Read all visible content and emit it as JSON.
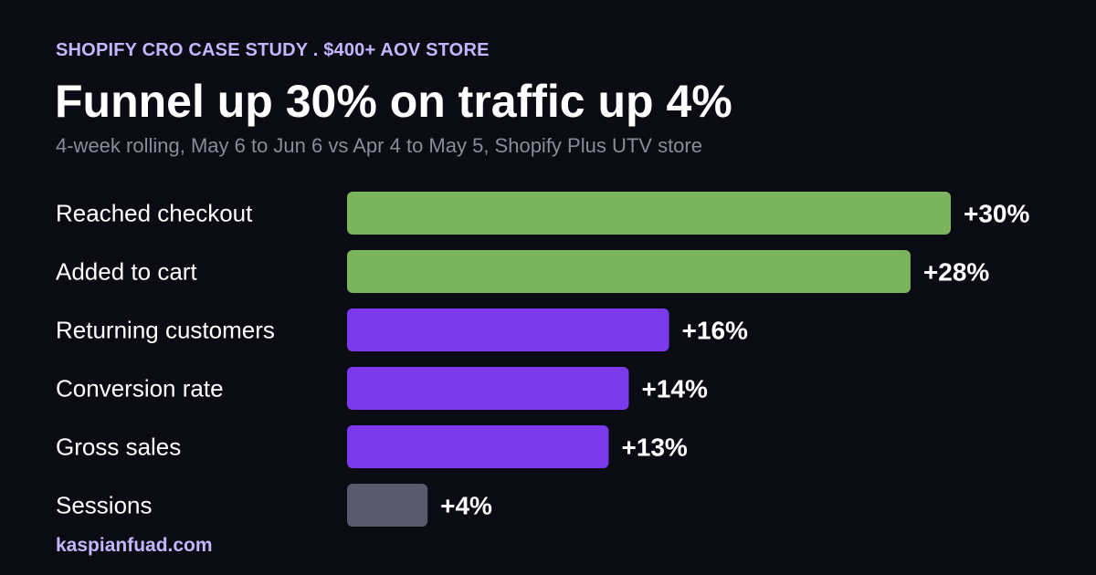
{
  "header": {
    "eyebrow": "SHOPIFY CRO CASE STUDY  .  $400+ AOV STORE",
    "title": "Funnel up 30% on traffic up 4%",
    "subtitle": "4-week rolling, May 6 to Jun 6 vs Apr 4 to May 5, Shopify Plus UTV store"
  },
  "footer": {
    "site": "kaspianfuad.com"
  },
  "chart_data": {
    "type": "bar",
    "orientation": "horizontal",
    "unit": "%",
    "categories": [
      "Reached checkout",
      "Added to cart",
      "Returning customers",
      "Conversion rate",
      "Gross sales",
      "Sessions"
    ],
    "values": [
      30,
      28,
      16,
      14,
      13,
      4
    ],
    "value_labels": [
      "+30%",
      "+28%",
      "+16%",
      "+14%",
      "+13%",
      "+4%"
    ],
    "bar_colors": [
      "#7cb45e",
      "#7cb45e",
      "#7c3aed",
      "#7c3aed",
      "#7c3aed",
      "#5a5a6e"
    ],
    "xlim": [
      0,
      30
    ],
    "grid": false,
    "legend": "none"
  }
}
